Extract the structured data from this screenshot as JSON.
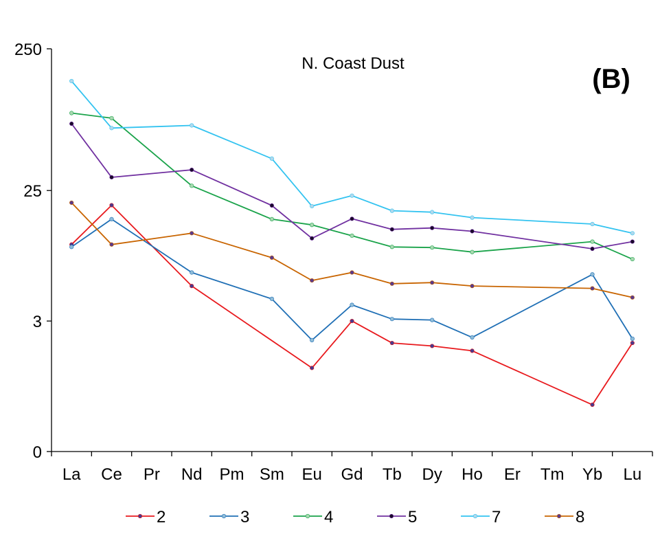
{
  "chart_data": {
    "type": "line",
    "title": "N. Coast Dust",
    "panel_label": "(B)",
    "xlabel": "",
    "ylabel": "",
    "categories": [
      "La",
      "Ce",
      "Pr",
      "Nd",
      "Pm",
      "Sm",
      "Eu",
      "Gd",
      "Tb",
      "Dy",
      "Ho",
      "Er",
      "Tm",
      "Yb",
      "Lu"
    ],
    "y_scale": "log",
    "y_ticks": [
      {
        "label": "250",
        "value": 250
      },
      {
        "label": "25",
        "value": 25
      },
      {
        "label": "3",
        "value": 3
      },
      {
        "label": "0",
        "value": 0.36
      }
    ],
    "ylim": [
      0.36,
      250
    ],
    "grid": false,
    "legend_position": "bottom",
    "series": [
      {
        "name": "2",
        "color": "#e8191d",
        "marker_color": "#4a3a8c",
        "values": [
          10.4,
          19.7,
          null,
          5.3,
          null,
          null,
          1.4,
          3.0,
          2.1,
          2.0,
          1.85,
          null,
          null,
          0.77,
          2.1
        ]
      },
      {
        "name": "3",
        "color": "#1f6fb5",
        "marker_color": "#8fbcd8",
        "values": [
          10.0,
          15.7,
          null,
          6.6,
          null,
          4.3,
          2.2,
          3.9,
          3.1,
          3.05,
          2.3,
          null,
          null,
          6.4,
          2.25
        ]
      },
      {
        "name": "4",
        "color": "#1aa34a",
        "marker_color": "#a8d8b0",
        "values": [
          88,
          81,
          null,
          27,
          null,
          15.7,
          14.3,
          12.0,
          10.0,
          9.9,
          9.2,
          null,
          null,
          10.9,
          8.2
        ]
      },
      {
        "name": "5",
        "color": "#7030a0",
        "marker_color": "#1a0a2a",
        "values": [
          74,
          31,
          null,
          35,
          null,
          19.6,
          11.5,
          15.8,
          13.3,
          13.6,
          12.9,
          null,
          null,
          9.7,
          10.9
        ]
      },
      {
        "name": "7",
        "color": "#33c3f0",
        "marker_color": "#b0d8ec",
        "values": [
          148,
          69,
          null,
          72,
          null,
          42,
          19.4,
          23.0,
          18.0,
          17.6,
          16.1,
          null,
          null,
          14.5,
          12.5
        ]
      },
      {
        "name": "8",
        "color": "#c86400",
        "marker_color": "#5a3a8c",
        "values": [
          20.5,
          10.4,
          null,
          12.5,
          null,
          8.4,
          5.8,
          6.6,
          5.5,
          5.6,
          5.3,
          null,
          null,
          5.1,
          4.4
        ]
      }
    ]
  }
}
